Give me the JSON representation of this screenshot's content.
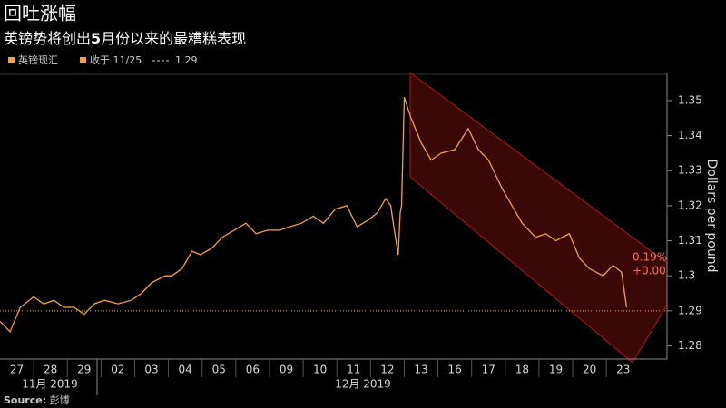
{
  "chart_data": {
    "type": "line",
    "title": "回吐涨幅",
    "subtitle_parts": [
      "英镑势将创出",
      "5",
      "月份以来的最糟糕表现"
    ],
    "legend_name": "英镑现汇",
    "reference": {
      "label": "收于 11/25",
      "value": 1.29
    },
    "y_label": "Dollars per pound",
    "annotations": [
      "0.19%",
      "+0.00"
    ],
    "source_label": "Source:",
    "source": "彭博",
    "months": [
      "11月 2019",
      "12月 2019"
    ],
    "categories": [
      "27",
      "28",
      "29",
      "02",
      "03",
      "04",
      "05",
      "06",
      "09",
      "10",
      "11",
      "12",
      "13",
      "16",
      "17",
      "18",
      "19",
      "20",
      "23"
    ],
    "xlim": [
      0,
      19.8
    ],
    "ylim": [
      1.2765,
      1.358
    ],
    "yticks": [
      1.28,
      1.29,
      1.3,
      1.31,
      1.32,
      1.33,
      1.34,
      1.35
    ],
    "series": [
      {
        "name": "英镑现汇",
        "color": "#f5a23c",
        "x": [
          0,
          0.3,
          0.6,
          1.0,
          1.3,
          1.6,
          1.9,
          2.2,
          2.5,
          2.8,
          3.1,
          3.5,
          3.9,
          4.2,
          4.5,
          4.9,
          5.1,
          5.4,
          5.7,
          5.95,
          6.3,
          6.6,
          6.95,
          7.3,
          7.6,
          7.95,
          8.3,
          8.6,
          8.95,
          9.3,
          9.6,
          9.95,
          10.3,
          10.6,
          10.95,
          11.2,
          11.45,
          11.6,
          11.72,
          11.82,
          11.88,
          11.92,
          12.0,
          12.2,
          12.5,
          12.8,
          13.1,
          13.5,
          13.9,
          14.2,
          14.5,
          14.9,
          15.2,
          15.5,
          15.9,
          16.2,
          16.5,
          16.9,
          17.2,
          17.5,
          17.9,
          18.2,
          18.45,
          18.6
        ],
        "values": [
          1.287,
          1.284,
          1.291,
          1.294,
          1.292,
          1.293,
          1.291,
          1.291,
          1.289,
          1.292,
          1.293,
          1.292,
          1.293,
          1.295,
          1.298,
          1.3,
          1.3,
          1.302,
          1.307,
          1.306,
          1.308,
          1.311,
          1.313,
          1.315,
          1.312,
          1.313,
          1.313,
          1.314,
          1.315,
          1.317,
          1.315,
          1.319,
          1.32,
          1.314,
          1.316,
          1.318,
          1.322,
          1.32,
          1.312,
          1.306,
          1.318,
          1.32,
          1.351,
          1.345,
          1.338,
          1.333,
          1.335,
          1.336,
          1.342,
          1.336,
          1.333,
          1.325,
          1.32,
          1.315,
          1.311,
          1.312,
          1.31,
          1.312,
          1.305,
          1.302,
          1.3,
          1.303,
          1.301,
          1.291
        ]
      }
    ]
  }
}
